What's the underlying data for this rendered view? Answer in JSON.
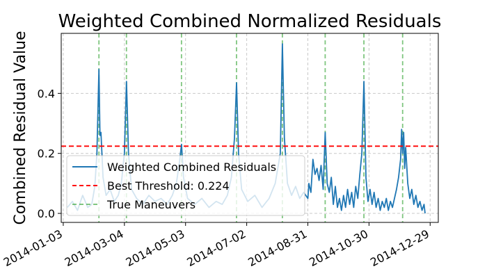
{
  "chart_data": {
    "type": "line",
    "title": "Weighted Combined Normalized Residuals",
    "xlabel": "",
    "ylabel": "Combined Residual Value",
    "xlim": [
      "2014-01-01",
      "2015-01-06"
    ],
    "ylim": [
      -0.03,
      0.6
    ],
    "x_ticks": [
      "2014-01-03",
      "2014-03-04",
      "2014-05-03",
      "2014-07-02",
      "2014-08-31",
      "2014-10-30",
      "2014-12-29"
    ],
    "y_ticks": [
      0.0,
      0.2,
      0.4
    ],
    "y_tick_labels": [
      "0.0",
      "0.2",
      "0.4"
    ],
    "grid": true,
    "legend_position": "lower-left",
    "series": [
      {
        "name": "Weighted Combined Residuals",
        "color": "#1f77b4",
        "points": [
          [
            "2014-01-07",
            0.02
          ],
          [
            "2014-01-12",
            0.04
          ],
          [
            "2014-01-17",
            0.01
          ],
          [
            "2014-01-22",
            0.06
          ],
          [
            "2014-01-27",
            0.02
          ],
          [
            "2014-01-31",
            0.03
          ],
          [
            "2014-02-03",
            0.09
          ],
          [
            "2014-02-05",
            0.2
          ],
          [
            "2014-02-07",
            0.48
          ],
          [
            "2014-02-08",
            0.26
          ],
          [
            "2014-02-09",
            0.27
          ],
          [
            "2014-02-11",
            0.12
          ],
          [
            "2014-02-14",
            0.06
          ],
          [
            "2014-02-18",
            0.08
          ],
          [
            "2014-02-22",
            0.04
          ],
          [
            "2014-02-26",
            0.06
          ],
          [
            "2014-03-01",
            0.1
          ],
          [
            "2014-03-04",
            0.2
          ],
          [
            "2014-03-06",
            0.44
          ],
          [
            "2014-03-08",
            0.2
          ],
          [
            "2014-03-11",
            0.08
          ],
          [
            "2014-03-16",
            0.05
          ],
          [
            "2014-03-22",
            0.03
          ],
          [
            "2014-03-28",
            0.06
          ],
          [
            "2014-04-03",
            0.04
          ],
          [
            "2014-04-09",
            0.05
          ],
          [
            "2014-04-15",
            0.03
          ],
          [
            "2014-04-20",
            0.06
          ],
          [
            "2014-04-24",
            0.1
          ],
          [
            "2014-04-27",
            0.17
          ],
          [
            "2014-04-29",
            0.23
          ],
          [
            "2014-05-01",
            0.12
          ],
          [
            "2014-05-05",
            0.05
          ],
          [
            "2014-05-12",
            0.03
          ],
          [
            "2014-05-19",
            0.05
          ],
          [
            "2014-05-26",
            0.02
          ],
          [
            "2014-06-02",
            0.04
          ],
          [
            "2014-06-08",
            0.03
          ],
          [
            "2014-06-13",
            0.06
          ],
          [
            "2014-06-17",
            0.12
          ],
          [
            "2014-06-20",
            0.25
          ],
          [
            "2014-06-22",
            0.435
          ],
          [
            "2014-06-24",
            0.2
          ],
          [
            "2014-06-27",
            0.08
          ],
          [
            "2014-07-03",
            0.04
          ],
          [
            "2014-07-10",
            0.06
          ],
          [
            "2014-07-17",
            0.02
          ],
          [
            "2014-07-24",
            0.05
          ],
          [
            "2014-07-30",
            0.1
          ],
          [
            "2014-08-04",
            0.2
          ],
          [
            "2014-08-06",
            0.565
          ],
          [
            "2014-08-08",
            0.25
          ],
          [
            "2014-08-11",
            0.1
          ],
          [
            "2014-08-15",
            0.06
          ],
          [
            "2014-08-19",
            0.09
          ],
          [
            "2014-08-23",
            0.05
          ],
          [
            "2014-08-27",
            0.07
          ],
          [
            "2014-08-31",
            0.05
          ],
          [
            "2014-09-01",
            0.1
          ],
          [
            "2014-09-03",
            0.07
          ],
          [
            "2014-09-05",
            0.18
          ],
          [
            "2014-09-07",
            0.13
          ],
          [
            "2014-09-09",
            0.15
          ],
          [
            "2014-09-11",
            0.11
          ],
          [
            "2014-09-13",
            0.16
          ],
          [
            "2014-09-15",
            0.08
          ],
          [
            "2014-09-17",
            0.27
          ],
          [
            "2014-09-19",
            0.1
          ],
          [
            "2014-09-21",
            0.07
          ],
          [
            "2014-09-23",
            0.12
          ],
          [
            "2014-09-25",
            0.03
          ],
          [
            "2014-09-27",
            0.09
          ],
          [
            "2014-09-29",
            0.02
          ],
          [
            "2014-10-01",
            0.05
          ],
          [
            "2014-10-03",
            0.01
          ],
          [
            "2014-10-05",
            0.06
          ],
          [
            "2014-10-07",
            0.02
          ],
          [
            "2014-10-09",
            0.08
          ],
          [
            "2014-10-11",
            0.03
          ],
          [
            "2014-10-13",
            0.07
          ],
          [
            "2014-10-15",
            0.02
          ],
          [
            "2014-10-17",
            0.09
          ],
          [
            "2014-10-19",
            0.05
          ],
          [
            "2014-10-21",
            0.13
          ],
          [
            "2014-10-23",
            0.2
          ],
          [
            "2014-10-25",
            0.44
          ],
          [
            "2014-10-27",
            0.12
          ],
          [
            "2014-10-29",
            0.04
          ],
          [
            "2014-10-31",
            0.08
          ],
          [
            "2014-11-02",
            0.03
          ],
          [
            "2014-11-04",
            0.07
          ],
          [
            "2014-11-06",
            0.02
          ],
          [
            "2014-11-08",
            0.05
          ],
          [
            "2014-11-10",
            0.01
          ],
          [
            "2014-11-12",
            0.04
          ],
          [
            "2014-11-14",
            0.02
          ],
          [
            "2014-11-16",
            0.05
          ],
          [
            "2014-11-18",
            0.01
          ],
          [
            "2014-11-20",
            0.04
          ],
          [
            "2014-11-22",
            0.02
          ],
          [
            "2014-11-24",
            0.05
          ],
          [
            "2014-11-26",
            0.08
          ],
          [
            "2014-11-28",
            0.12
          ],
          [
            "2014-11-30",
            0.18
          ],
          [
            "2014-12-01",
            0.28
          ],
          [
            "2014-12-02",
            0.2
          ],
          [
            "2014-12-03",
            0.27
          ],
          [
            "2014-12-04",
            0.15
          ],
          [
            "2014-12-05",
            0.22
          ],
          [
            "2014-12-07",
            0.1
          ],
          [
            "2014-12-09",
            0.05
          ],
          [
            "2014-12-11",
            0.08
          ],
          [
            "2014-12-13",
            0.03
          ],
          [
            "2014-12-15",
            0.06
          ],
          [
            "2014-12-17",
            0.02
          ],
          [
            "2014-12-19",
            0.04
          ],
          [
            "2014-12-21",
            0.01
          ],
          [
            "2014-12-23",
            0.03
          ],
          [
            "2014-12-24",
            0.0
          ]
        ]
      },
      {
        "name": "Best Threshold: 0.224",
        "color": "#ff0000",
        "style": "dashed",
        "y": 0.224
      },
      {
        "name": "True Maneuvers",
        "color": "#2ca02c",
        "style": "dashed",
        "dates": [
          "2014-02-07",
          "2014-03-06",
          "2014-04-29",
          "2014-06-22",
          "2014-08-06",
          "2014-09-17",
          "2014-10-25",
          "2014-12-02"
        ]
      }
    ]
  }
}
